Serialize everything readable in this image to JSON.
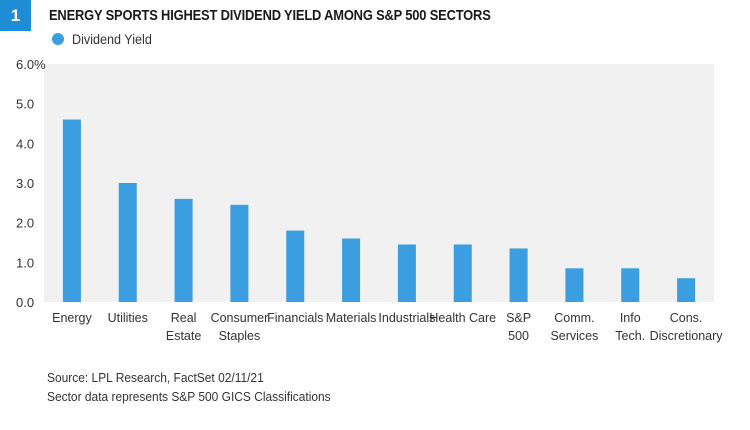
{
  "figure": {
    "number": "1",
    "title": "ENERGY SPORTS HIGHEST DIVIDEND YIELD AMONG S&P 500 SECTORS",
    "source_lines": [
      "Source: LPL Research, FactSet 02/11/21",
      "Sector data represents S&P 500 GICS Classifications"
    ]
  },
  "colors": {
    "accent": "#1f8dd6",
    "bar": "#3a9ee0",
    "plot_bg": "#f1f1f2"
  },
  "chart_data": {
    "type": "bar",
    "title": "ENERGY SPORTS HIGHEST DIVIDEND YIELD AMONG S&P 500 SECTORS",
    "xlabel": "",
    "ylabel": "",
    "ylim": [
      0,
      6
    ],
    "yticks": [
      "6.0%",
      "5.0",
      "4.0",
      "3.0",
      "2.0",
      "1.0",
      "0.0"
    ],
    "legend": "top-left",
    "grid": false,
    "categories": [
      [
        "Energy"
      ],
      [
        "Utilities"
      ],
      [
        "Real",
        "Estate"
      ],
      [
        "Consumer",
        "Staples"
      ],
      [
        "Financials"
      ],
      [
        "Materials"
      ],
      [
        "Industrials"
      ],
      [
        "Health Care"
      ],
      [
        "S&P",
        "500"
      ],
      [
        "Comm.",
        "Services"
      ],
      [
        "Info",
        "Tech."
      ],
      [
        "Cons.",
        "Discretionary"
      ]
    ],
    "series": [
      {
        "name": "Dividend Yield",
        "values": [
          4.6,
          3.0,
          2.6,
          2.45,
          1.8,
          1.6,
          1.45,
          1.45,
          1.35,
          0.85,
          0.85,
          0.6
        ]
      }
    ]
  }
}
